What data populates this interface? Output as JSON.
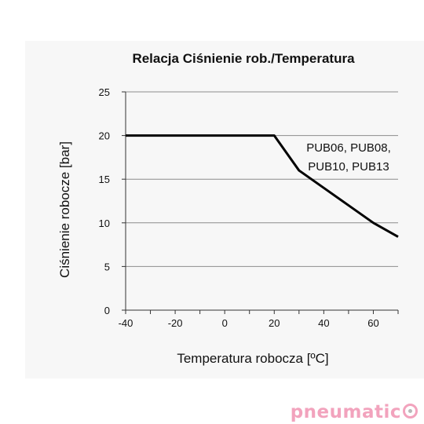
{
  "chart_data": {
    "type": "line",
    "title": "Relacja Ciśnienie rob./Temperatura",
    "xlabel": "Temperatura robocza [ºC]",
    "ylabel": "Ciśnienie robocze [bar]",
    "xlim": [
      -40,
      70
    ],
    "ylim": [
      0,
      25
    ],
    "x_ticks": [
      -40,
      -20,
      0,
      20,
      40,
      60
    ],
    "y_ticks": [
      0,
      5,
      10,
      15,
      20,
      25
    ],
    "grid": "horizontal",
    "series": [
      {
        "x": [
          -40,
          20,
          30,
          40,
          50,
          60,
          70
        ],
        "y": [
          20,
          20,
          16,
          14,
          12,
          10,
          8.4
        ],
        "color": "#000000"
      }
    ],
    "annotation": [
      "PUB06, PUB08,",
      "PUB10, PUB13"
    ]
  },
  "logo": {
    "text": "pneumatic",
    "accent": "#f2a3bd"
  }
}
